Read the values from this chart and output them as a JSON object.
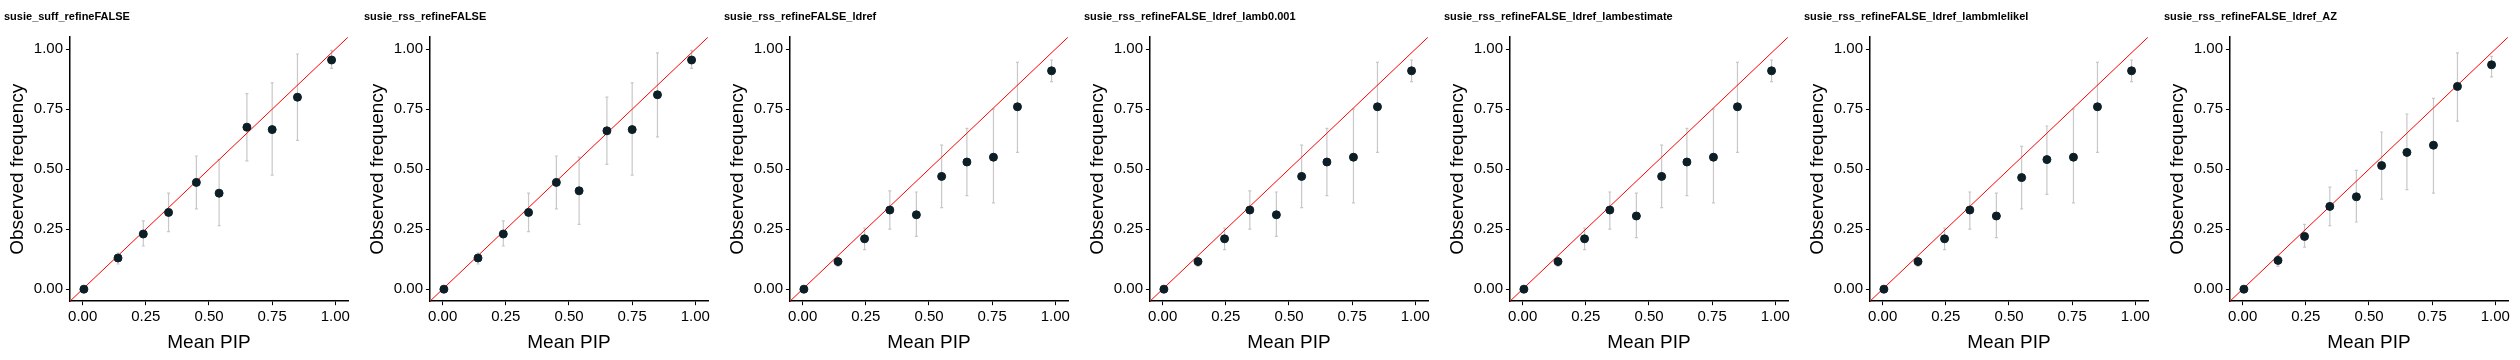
{
  "chart_data": [
    {
      "type": "scatter",
      "title": "susie_suff_refineFALSE",
      "xlabel": "Mean PIP",
      "ylabel": "Observed frequency",
      "xlim": [
        -0.05,
        1.05
      ],
      "ylim": [
        -0.05,
        1.05
      ],
      "xticks": [
        {
          "value": 0,
          "label": "0.00"
        },
        {
          "value": 0.25,
          "label": "0.25"
        },
        {
          "value": 0.5,
          "label": "0.50"
        },
        {
          "value": 0.75,
          "label": "0.75"
        },
        {
          "value": 1,
          "label": "1.00"
        }
      ],
      "yticks": [
        {
          "value": 0,
          "label": "0.00"
        },
        {
          "value": 0.25,
          "label": "0.25"
        },
        {
          "value": 0.5,
          "label": "0.50"
        },
        {
          "value": 0.75,
          "label": "0.75"
        },
        {
          "value": 1,
          "label": "1.00"
        }
      ],
      "grid": false,
      "legend": false,
      "series": [
        {
          "type": "scatter",
          "marker": "circle",
          "color": "#0d1f26",
          "x": [
            0.005,
            0.14,
            0.24,
            0.34,
            0.45,
            0.54,
            0.65,
            0.75,
            0.85,
            0.985
          ],
          "values": [
            0,
            0.13,
            0.23,
            0.32,
            0.445,
            0.4,
            0.675,
            0.665,
            0.8,
            0.955
          ],
          "errors": [
            null,
            [
              0.105,
              0.15
            ],
            [
              0.18,
              0.285
            ],
            [
              0.24,
              0.4
            ],
            [
              0.335,
              0.555
            ],
            [
              0.265,
              0.54
            ],
            [
              0.535,
              0.815
            ],
            [
              0.475,
              0.86
            ],
            [
              0.62,
              0.98
            ],
            [
              0.92,
              0.995
            ]
          ]
        },
        {
          "type": "line",
          "marker": "none",
          "color": "#ff0000",
          "x": [
            -0.05,
            1.05
          ],
          "values": [
            -0.05,
            1.05
          ]
        }
      ]
    },
    {
      "type": "scatter",
      "title": "susie_rss_refineFALSE",
      "xlabel": "Mean PIP",
      "ylabel": "Observed frequency",
      "xlim": [
        -0.05,
        1.05
      ],
      "ylim": [
        -0.05,
        1.05
      ],
      "xticks": [
        {
          "value": 0,
          "label": "0.00"
        },
        {
          "value": 0.25,
          "label": "0.25"
        },
        {
          "value": 0.5,
          "label": "0.50"
        },
        {
          "value": 0.75,
          "label": "0.75"
        },
        {
          "value": 1,
          "label": "1.00"
        }
      ],
      "yticks": [
        {
          "value": 0,
          "label": "0.00"
        },
        {
          "value": 0.25,
          "label": "0.25"
        },
        {
          "value": 0.5,
          "label": "0.50"
        },
        {
          "value": 0.75,
          "label": "0.75"
        },
        {
          "value": 1,
          "label": "1.00"
        }
      ],
      "grid": false,
      "legend": false,
      "series": [
        {
          "type": "scatter",
          "marker": "circle",
          "color": "#0d1f26",
          "x": [
            0.005,
            0.14,
            0.24,
            0.34,
            0.45,
            0.54,
            0.65,
            0.75,
            0.85,
            0.985
          ],
          "values": [
            0,
            0.13,
            0.23,
            0.32,
            0.445,
            0.41,
            0.66,
            0.665,
            0.81,
            0.955
          ],
          "errors": [
            null,
            [
              0.105,
              0.15
            ],
            [
              0.18,
              0.285
            ],
            [
              0.24,
              0.4
            ],
            [
              0.335,
              0.555
            ],
            [
              0.27,
              0.55
            ],
            [
              0.52,
              0.8
            ],
            [
              0.475,
              0.86
            ],
            [
              0.635,
              0.985
            ],
            [
              0.92,
              0.995
            ]
          ]
        },
        {
          "type": "line",
          "marker": "none",
          "color": "#ff0000",
          "x": [
            -0.05,
            1.05
          ],
          "values": [
            -0.05,
            1.05
          ]
        }
      ]
    },
    {
      "type": "scatter",
      "title": "susie_rss_refineFALSE_ldref",
      "xlabel": "Mean PIP",
      "ylabel": "Observed frequency",
      "xlim": [
        -0.05,
        1.05
      ],
      "ylim": [
        -0.05,
        1.05
      ],
      "xticks": [
        {
          "value": 0,
          "label": "0.00"
        },
        {
          "value": 0.25,
          "label": "0.25"
        },
        {
          "value": 0.5,
          "label": "0.50"
        },
        {
          "value": 0.75,
          "label": "0.75"
        },
        {
          "value": 1,
          "label": "1.00"
        }
      ],
      "yticks": [
        {
          "value": 0,
          "label": "0.00"
        },
        {
          "value": 0.25,
          "label": "0.25"
        },
        {
          "value": 0.5,
          "label": "0.50"
        },
        {
          "value": 0.75,
          "label": "0.75"
        },
        {
          "value": 1,
          "label": "1.00"
        }
      ],
      "grid": false,
      "legend": false,
      "series": [
        {
          "type": "scatter",
          "marker": "circle",
          "color": "#0d1f26",
          "x": [
            0.005,
            0.14,
            0.245,
            0.345,
            0.45,
            0.55,
            0.65,
            0.755,
            0.85,
            0.985
          ],
          "values": [
            0,
            0.115,
            0.21,
            0.33,
            0.31,
            0.47,
            0.53,
            0.55,
            0.76,
            0.91
          ],
          "errors": [
            null,
            [
              0.095,
              0.13
            ],
            [
              0.165,
              0.255
            ],
            [
              0.25,
              0.41
            ],
            [
              0.22,
              0.405
            ],
            [
              0.34,
              0.6
            ],
            [
              0.39,
              0.67
            ],
            [
              0.36,
              0.75
            ],
            [
              0.57,
              0.945
            ],
            [
              0.865,
              0.955
            ]
          ]
        },
        {
          "type": "line",
          "marker": "none",
          "color": "#ff0000",
          "x": [
            -0.05,
            1.05
          ],
          "values": [
            -0.05,
            1.05
          ]
        }
      ]
    },
    {
      "type": "scatter",
      "title": "susie_rss_refineFALSE_ldref_lamb0.001",
      "xlabel": "Mean PIP",
      "ylabel": "Observed frequency",
      "xlim": [
        -0.05,
        1.05
      ],
      "ylim": [
        -0.05,
        1.05
      ],
      "xticks": [
        {
          "value": 0,
          "label": "0.00"
        },
        {
          "value": 0.25,
          "label": "0.25"
        },
        {
          "value": 0.5,
          "label": "0.50"
        },
        {
          "value": 0.75,
          "label": "0.75"
        },
        {
          "value": 1,
          "label": "1.00"
        }
      ],
      "yticks": [
        {
          "value": 0,
          "label": "0.00"
        },
        {
          "value": 0.25,
          "label": "0.25"
        },
        {
          "value": 0.5,
          "label": "0.50"
        },
        {
          "value": 0.75,
          "label": "0.75"
        },
        {
          "value": 1,
          "label": "1.00"
        }
      ],
      "grid": false,
      "legend": false,
      "series": [
        {
          "type": "scatter",
          "marker": "circle",
          "color": "#0d1f26",
          "x": [
            0.005,
            0.14,
            0.245,
            0.345,
            0.45,
            0.55,
            0.65,
            0.755,
            0.85,
            0.985
          ],
          "values": [
            0,
            0.115,
            0.21,
            0.33,
            0.31,
            0.47,
            0.53,
            0.55,
            0.76,
            0.91
          ],
          "errors": [
            null,
            [
              0.095,
              0.13
            ],
            [
              0.165,
              0.255
            ],
            [
              0.25,
              0.41
            ],
            [
              0.22,
              0.405
            ],
            [
              0.34,
              0.6
            ],
            [
              0.39,
              0.67
            ],
            [
              0.36,
              0.75
            ],
            [
              0.57,
              0.945
            ],
            [
              0.865,
              0.955
            ]
          ]
        },
        {
          "type": "line",
          "marker": "none",
          "color": "#ff0000",
          "x": [
            -0.05,
            1.05
          ],
          "values": [
            -0.05,
            1.05
          ]
        }
      ]
    },
    {
      "type": "scatter",
      "title": "susie_rss_refineFALSE_ldref_lambestimate",
      "xlabel": "Mean PIP",
      "ylabel": "Observed frequency",
      "xlim": [
        -0.05,
        1.05
      ],
      "ylim": [
        -0.05,
        1.05
      ],
      "xticks": [
        {
          "value": 0,
          "label": "0.00"
        },
        {
          "value": 0.25,
          "label": "0.25"
        },
        {
          "value": 0.5,
          "label": "0.50"
        },
        {
          "value": 0.75,
          "label": "0.75"
        },
        {
          "value": 1,
          "label": "1.00"
        }
      ],
      "yticks": [
        {
          "value": 0,
          "label": "0.00"
        },
        {
          "value": 0.25,
          "label": "0.25"
        },
        {
          "value": 0.5,
          "label": "0.50"
        },
        {
          "value": 0.75,
          "label": "0.75"
        },
        {
          "value": 1,
          "label": "1.00"
        }
      ],
      "grid": false,
      "legend": false,
      "series": [
        {
          "type": "scatter",
          "marker": "circle",
          "color": "#0d1f26",
          "x": [
            0.005,
            0.14,
            0.245,
            0.345,
            0.45,
            0.55,
            0.65,
            0.755,
            0.85,
            0.985
          ],
          "values": [
            0,
            0.115,
            0.21,
            0.33,
            0.305,
            0.47,
            0.53,
            0.55,
            0.76,
            0.91
          ],
          "errors": [
            null,
            [
              0.095,
              0.13
            ],
            [
              0.165,
              0.255
            ],
            [
              0.25,
              0.405
            ],
            [
              0.215,
              0.4
            ],
            [
              0.34,
              0.6
            ],
            [
              0.39,
              0.67
            ],
            [
              0.36,
              0.75
            ],
            [
              0.57,
              0.945
            ],
            [
              0.865,
              0.955
            ]
          ]
        },
        {
          "type": "line",
          "marker": "none",
          "color": "#ff0000",
          "x": [
            -0.05,
            1.05
          ],
          "values": [
            -0.05,
            1.05
          ]
        }
      ]
    },
    {
      "type": "scatter",
      "title": "susie_rss_refineFALSE_ldref_lambmlelikel",
      "xlabel": "Mean PIP",
      "ylabel": "Observed frequency",
      "xlim": [
        -0.05,
        1.05
      ],
      "ylim": [
        -0.05,
        1.05
      ],
      "xticks": [
        {
          "value": 0,
          "label": "0.00"
        },
        {
          "value": 0.25,
          "label": "0.25"
        },
        {
          "value": 0.5,
          "label": "0.50"
        },
        {
          "value": 0.75,
          "label": "0.75"
        },
        {
          "value": 1,
          "label": "1.00"
        }
      ],
      "yticks": [
        {
          "value": 0,
          "label": "0.00"
        },
        {
          "value": 0.25,
          "label": "0.25"
        },
        {
          "value": 0.5,
          "label": "0.50"
        },
        {
          "value": 0.75,
          "label": "0.75"
        },
        {
          "value": 1,
          "label": "1.00"
        }
      ],
      "grid": false,
      "legend": false,
      "series": [
        {
          "type": "scatter",
          "marker": "circle",
          "color": "#0d1f26",
          "x": [
            0.005,
            0.14,
            0.245,
            0.345,
            0.45,
            0.55,
            0.65,
            0.755,
            0.85,
            0.985
          ],
          "values": [
            0,
            0.115,
            0.21,
            0.33,
            0.305,
            0.465,
            0.54,
            0.55,
            0.76,
            0.91
          ],
          "errors": [
            null,
            [
              0.095,
              0.13
            ],
            [
              0.165,
              0.255
            ],
            [
              0.25,
              0.405
            ],
            [
              0.215,
              0.4
            ],
            [
              0.335,
              0.595
            ],
            [
              0.395,
              0.68
            ],
            [
              0.36,
              0.75
            ],
            [
              0.57,
              0.945
            ],
            [
              0.865,
              0.955
            ]
          ]
        },
        {
          "type": "line",
          "marker": "none",
          "color": "#ff0000",
          "x": [
            -0.05,
            1.05
          ],
          "values": [
            -0.05,
            1.05
          ]
        }
      ]
    },
    {
      "type": "scatter",
      "title": "susie_rss_refineFALSE_ldref_AZ",
      "xlabel": "Mean PIP",
      "ylabel": "Observed frequency",
      "xlim": [
        -0.05,
        1.05
      ],
      "ylim": [
        -0.05,
        1.05
      ],
      "xticks": [
        {
          "value": 0,
          "label": "0.00"
        },
        {
          "value": 0.25,
          "label": "0.25"
        },
        {
          "value": 0.5,
          "label": "0.50"
        },
        {
          "value": 0.75,
          "label": "0.75"
        },
        {
          "value": 1,
          "label": "1.00"
        }
      ],
      "yticks": [
        {
          "value": 0,
          "label": "0.00"
        },
        {
          "value": 0.25,
          "label": "0.25"
        },
        {
          "value": 0.5,
          "label": "0.50"
        },
        {
          "value": 0.75,
          "label": "0.75"
        },
        {
          "value": 1,
          "label": "1.00"
        }
      ],
      "grid": false,
      "legend": false,
      "series": [
        {
          "type": "scatter",
          "marker": "circle",
          "color": "#0d1f26",
          "x": [
            0.005,
            0.14,
            0.245,
            0.345,
            0.45,
            0.55,
            0.65,
            0.755,
            0.85,
            0.985
          ],
          "values": [
            0,
            0.12,
            0.22,
            0.345,
            0.385,
            0.515,
            0.57,
            0.6,
            0.845,
            0.935
          ],
          "errors": [
            null,
            [
              0.095,
              0.14
            ],
            [
              0.175,
              0.27
            ],
            [
              0.265,
              0.425
            ],
            [
              0.28,
              0.495
            ],
            [
              0.375,
              0.655
            ],
            [
              0.415,
              0.73
            ],
            [
              0.4,
              0.795
            ],
            [
              0.7,
              0.985
            ],
            [
              0.885,
              0.97
            ]
          ]
        },
        {
          "type": "line",
          "marker": "none",
          "color": "#ff0000",
          "x": [
            -0.05,
            1.05
          ],
          "values": [
            -0.05,
            1.05
          ]
        }
      ]
    }
  ]
}
